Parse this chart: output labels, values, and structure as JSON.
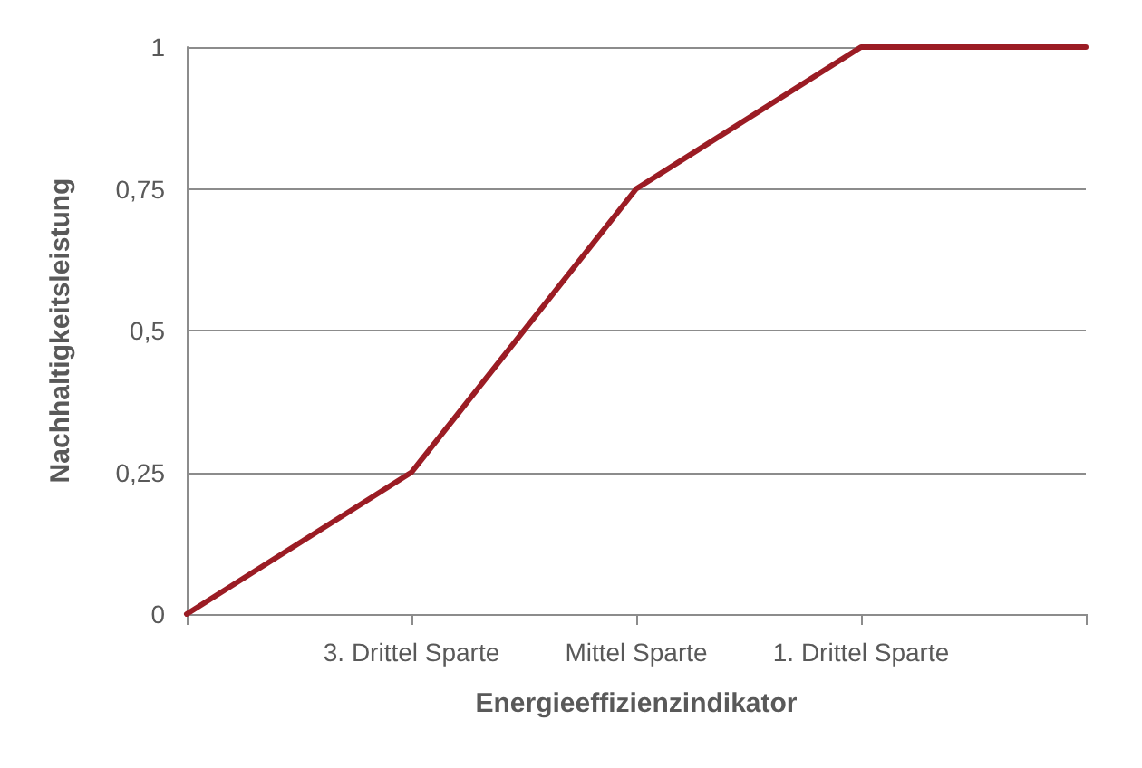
{
  "chart_data": {
    "type": "line",
    "xlabel": "Energieeffizienzindikator",
    "ylabel": "Nachhaltigkeitsleistung",
    "categories": [
      null,
      "3. Drittel Sparte",
      "Mittel Sparte",
      "1. Drittel Sparte",
      null
    ],
    "series": [
      {
        "color": "#9b1c24",
        "values": [
          0,
          0.25,
          0.75,
          1,
          1
        ]
      }
    ],
    "ylim": [
      0,
      1
    ],
    "yticks": [
      {
        "value": 0,
        "label": "0"
      },
      {
        "value": 0.25,
        "label": "0,25"
      },
      {
        "value": 0.5,
        "label": "0,5"
      },
      {
        "value": 0.75,
        "label": "0,75"
      },
      {
        "value": 1,
        "label": "1"
      }
    ],
    "grid": "y",
    "marker": "none",
    "line_style": "solid"
  }
}
